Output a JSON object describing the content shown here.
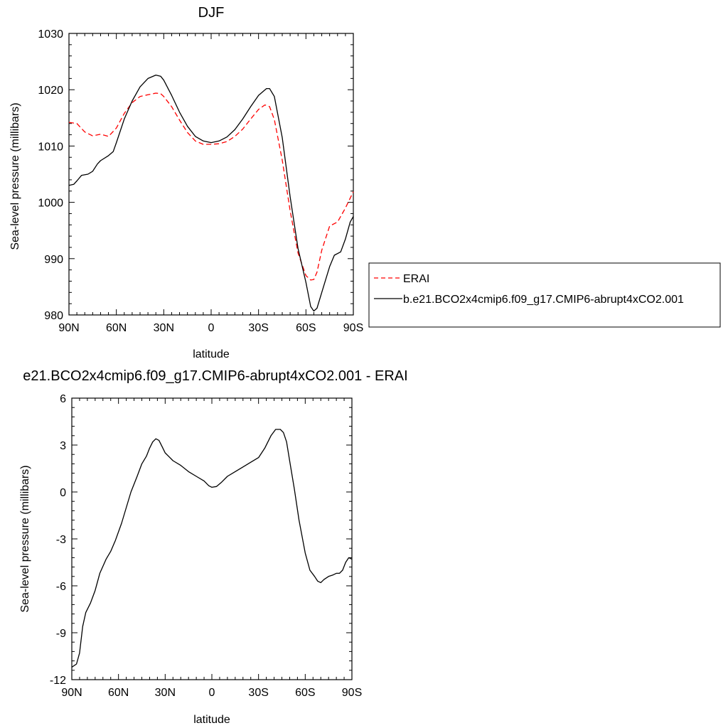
{
  "chart_data": [
    {
      "type": "line",
      "title": "DJF",
      "xlabel": "latitude",
      "ylabel": "Sea-level pressure (millibars)",
      "xlim": [
        90,
        -90
      ],
      "ylim": [
        980,
        1030
      ],
      "x_ticks": [
        90,
        60,
        30,
        0,
        -30,
        -60,
        -90
      ],
      "x_tick_labels": [
        "90N",
        "60N",
        "30N",
        "0",
        "30S",
        "60S",
        "90S"
      ],
      "y_ticks": [
        980,
        990,
        1000,
        1010,
        1020,
        1030
      ],
      "y_tick_labels": [
        "980",
        "990",
        "1000",
        "1010",
        "1020",
        "1030"
      ],
      "grid": false,
      "legend_position": "right",
      "series": [
        {
          "name": "ERAI",
          "color": "#ff0000",
          "dash": "dashed",
          "x": [
            90,
            85,
            80,
            75,
            70,
            65,
            60,
            55,
            50,
            45,
            40,
            35,
            32,
            30,
            25,
            20,
            15,
            10,
            5,
            0,
            -5,
            -10,
            -15,
            -20,
            -25,
            -30,
            -34,
            -37,
            -40,
            -45,
            -50,
            -55,
            -60,
            -63,
            -65,
            -67,
            -70,
            -75,
            -80,
            -85,
            -90
          ],
          "y": [
            1014.2,
            1014.0,
            1012.5,
            1011.8,
            1012.1,
            1011.7,
            1013.2,
            1015.8,
            1017.7,
            1018.8,
            1019.1,
            1019.4,
            1019.3,
            1018.8,
            1017.0,
            1014.6,
            1012.4,
            1010.9,
            1010.3,
            1010.3,
            1010.4,
            1010.8,
            1011.7,
            1013.0,
            1014.8,
            1016.5,
            1017.3,
            1017.0,
            1014.7,
            1007.5,
            998.5,
            991.0,
            987.0,
            986.2,
            986.3,
            987.6,
            991.5,
            995.8,
            996.5,
            999.0,
            1001.9
          ]
        },
        {
          "name": "b.e21.BCO2x4cmip6.f09_g17.CMIP6-abrupt4xCO2.001",
          "color": "#000000",
          "dash": "solid",
          "x": [
            90,
            87,
            85,
            82,
            78,
            75,
            72,
            70,
            65,
            62,
            60,
            55,
            50,
            45,
            40,
            35,
            32,
            30,
            25,
            20,
            15,
            10,
            5,
            0,
            -5,
            -10,
            -15,
            -20,
            -25,
            -30,
            -35,
            -37,
            -40,
            -45,
            -50,
            -55,
            -60,
            -63,
            -65,
            -67,
            -70,
            -75,
            -78,
            -82,
            -85,
            -88,
            -90
          ],
          "y": [
            1003.0,
            1003.2,
            1003.8,
            1004.8,
            1005.0,
            1005.5,
            1006.8,
            1007.4,
            1008.3,
            1009.0,
            1010.6,
            1014.8,
            1018.0,
            1020.5,
            1022.0,
            1022.6,
            1022.4,
            1021.7,
            1019.0,
            1016.0,
            1013.5,
            1011.7,
            1010.9,
            1010.6,
            1010.9,
            1011.6,
            1012.9,
            1014.8,
            1017.0,
            1019.0,
            1020.2,
            1020.2,
            1018.8,
            1011.5,
            1001.0,
            991.8,
            985.8,
            981.5,
            980.7,
            981.2,
            984.0,
            988.6,
            990.6,
            991.2,
            993.5,
            996.5,
            997.5
          ]
        }
      ]
    },
    {
      "type": "line",
      "title": "e21.BCO2x4cmip6.f09_g17.CMIP6-abrupt4xCO2.001 - ERAI",
      "xlabel": "latitude",
      "ylabel": "Sea-level pressure (millibars)",
      "xlim": [
        90,
        -90
      ],
      "ylim": [
        -12,
        6
      ],
      "x_ticks": [
        90,
        60,
        30,
        0,
        -30,
        -60,
        -90
      ],
      "x_tick_labels": [
        "90N",
        "60N",
        "30N",
        "0",
        "30S",
        "60S",
        "90S"
      ],
      "y_ticks": [
        -12,
        -9,
        -6,
        -3,
        0,
        3,
        6
      ],
      "y_tick_labels": [
        "-12",
        "-9",
        "-6",
        "-3",
        "0",
        "3",
        "6"
      ],
      "grid": false,
      "series": [
        {
          "color": "#000000",
          "dash": "solid",
          "x": [
            90,
            87,
            85,
            83,
            81,
            78,
            75,
            72,
            68,
            65,
            62,
            58,
            55,
            52,
            48,
            45,
            42,
            40,
            38,
            36,
            34,
            32,
            30,
            27,
            25,
            20,
            15,
            10,
            5,
            2,
            0,
            -3,
            -6,
            -10,
            -15,
            -20,
            -25,
            -30,
            -34,
            -38,
            -41,
            -44,
            -46,
            -48,
            -50,
            -53,
            -56,
            -60,
            -63,
            -66,
            -68,
            -70,
            -72,
            -75,
            -78,
            -80,
            -82,
            -84,
            -86,
            -88,
            -90
          ],
          "y": [
            -11.2,
            -11.0,
            -10.3,
            -8.6,
            -7.7,
            -7.1,
            -6.3,
            -5.2,
            -4.3,
            -3.8,
            -3.1,
            -2.0,
            -1.0,
            0.0,
            1.0,
            1.8,
            2.3,
            2.8,
            3.2,
            3.4,
            3.3,
            2.9,
            2.5,
            2.2,
            2.0,
            1.7,
            1.3,
            1.0,
            0.7,
            0.4,
            0.3,
            0.35,
            0.6,
            1.0,
            1.3,
            1.6,
            1.9,
            2.2,
            2.8,
            3.6,
            4.0,
            4.0,
            3.8,
            3.2,
            2.0,
            0.2,
            -1.8,
            -3.9,
            -5.0,
            -5.4,
            -5.7,
            -5.8,
            -5.6,
            -5.4,
            -5.3,
            -5.2,
            -5.2,
            -5.0,
            -4.5,
            -4.2,
            -4.3
          ]
        }
      ]
    }
  ]
}
